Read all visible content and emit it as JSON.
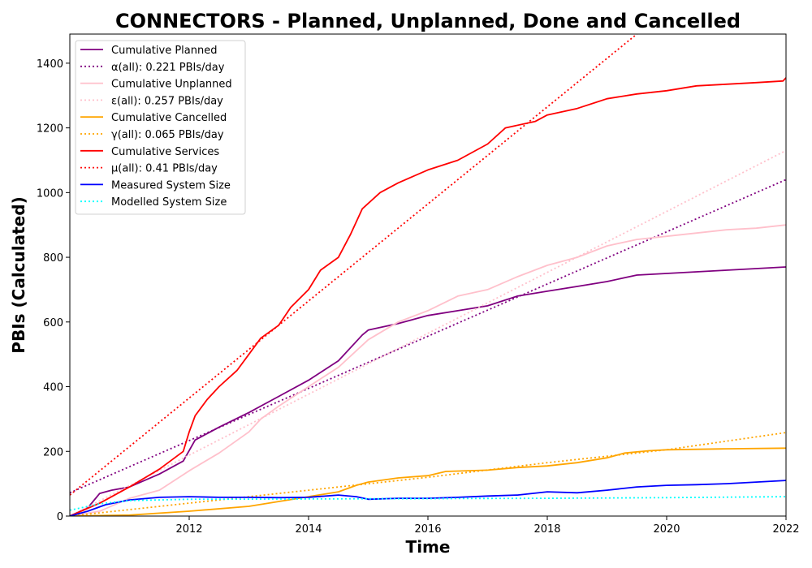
{
  "chart_data": {
    "type": "line",
    "title": "CONNECTORS - Planned, Unplanned, Done  and Cancelled",
    "xlabel": "Time",
    "ylabel": "PBIs (Calculated)",
    "xlim": [
      2010.0,
      2022.0
    ],
    "ylim": [
      0,
      1490
    ],
    "xticks": [
      2012,
      2014,
      2016,
      2018,
      2020,
      2022
    ],
    "yticks": [
      0,
      200,
      400,
      600,
      800,
      1000,
      1200,
      1400
    ],
    "grid": false,
    "legend_position": "upper-left",
    "series": [
      {
        "name": "Cumulative Planned",
        "color": "#800080",
        "style": "solid",
        "points": [
          [
            2010.0,
            0
          ],
          [
            2010.3,
            25
          ],
          [
            2010.5,
            70
          ],
          [
            2010.7,
            80
          ],
          [
            2011.0,
            90
          ],
          [
            2011.5,
            130
          ],
          [
            2011.9,
            170
          ],
          [
            2012.1,
            235
          ],
          [
            2012.5,
            275
          ],
          [
            2013.0,
            320
          ],
          [
            2013.5,
            370
          ],
          [
            2014.0,
            420
          ],
          [
            2014.5,
            480
          ],
          [
            2014.9,
            560
          ],
          [
            2015.0,
            575
          ],
          [
            2015.5,
            595
          ],
          [
            2016.0,
            620
          ],
          [
            2016.5,
            635
          ],
          [
            2017.0,
            650
          ],
          [
            2017.5,
            680
          ],
          [
            2018.0,
            695
          ],
          [
            2018.5,
            710
          ],
          [
            2019.0,
            725
          ],
          [
            2019.5,
            745
          ],
          [
            2020.0,
            750
          ],
          [
            2020.5,
            755
          ],
          [
            2021.0,
            760
          ],
          [
            2021.5,
            765
          ],
          [
            2022.0,
            770
          ]
        ]
      },
      {
        "name": "α(all): 0.221 PBIs/day",
        "color": "#800080",
        "style": "dotted",
        "points": [
          [
            2010.0,
            72
          ],
          [
            2022.0,
            1040
          ]
        ]
      },
      {
        "name": "Cumulative Unplanned",
        "color": "#ffc0cb",
        "style": "solid",
        "points": [
          [
            2010.0,
            0
          ],
          [
            2010.5,
            15
          ],
          [
            2011.0,
            55
          ],
          [
            2011.5,
            80
          ],
          [
            2012.0,
            140
          ],
          [
            2012.5,
            195
          ],
          [
            2013.0,
            260
          ],
          [
            2013.2,
            300
          ],
          [
            2013.5,
            340
          ],
          [
            2014.0,
            400
          ],
          [
            2014.5,
            460
          ],
          [
            2015.0,
            545
          ],
          [
            2015.5,
            600
          ],
          [
            2016.0,
            635
          ],
          [
            2016.5,
            680
          ],
          [
            2017.0,
            700
          ],
          [
            2017.5,
            740
          ],
          [
            2018.0,
            775
          ],
          [
            2018.5,
            800
          ],
          [
            2019.0,
            835
          ],
          [
            2019.5,
            855
          ],
          [
            2020.0,
            865
          ],
          [
            2020.5,
            875
          ],
          [
            2021.0,
            885
          ],
          [
            2021.5,
            890
          ],
          [
            2022.0,
            900
          ]
        ]
      },
      {
        "name": "ε(all): 0.257 PBIs/day",
        "color": "#ffc0cb",
        "style": "dotted",
        "points": [
          [
            2010.0,
            0
          ],
          [
            2022.0,
            1130
          ]
        ]
      },
      {
        "name": "Cumulative Cancelled",
        "color": "#ffa500",
        "style": "solid",
        "points": [
          [
            2010.0,
            0
          ],
          [
            2011.0,
            3
          ],
          [
            2012.0,
            15
          ],
          [
            2013.0,
            30
          ],
          [
            2014.0,
            60
          ],
          [
            2014.5,
            75
          ],
          [
            2014.8,
            95
          ],
          [
            2015.0,
            105
          ],
          [
            2015.5,
            118
          ],
          [
            2016.0,
            125
          ],
          [
            2016.3,
            138
          ],
          [
            2017.0,
            142
          ],
          [
            2017.5,
            150
          ],
          [
            2018.0,
            155
          ],
          [
            2018.5,
            165
          ],
          [
            2019.0,
            180
          ],
          [
            2019.3,
            195
          ],
          [
            2019.7,
            202
          ],
          [
            2020.0,
            205
          ],
          [
            2021.0,
            208
          ],
          [
            2022.0,
            210
          ]
        ]
      },
      {
        "name": "γ(all): 0.065 PBIs/day",
        "color": "#ffa500",
        "style": "dotted",
        "points": [
          [
            2010.0,
            0
          ],
          [
            2016.0,
            120
          ],
          [
            2018.0,
            165
          ],
          [
            2020.0,
            205
          ],
          [
            2022.0,
            258
          ]
        ]
      },
      {
        "name": "Cumulative Services",
        "color": "#ff0000",
        "style": "solid",
        "points": [
          [
            2010.0,
            0
          ],
          [
            2010.5,
            40
          ],
          [
            2011.0,
            90
          ],
          [
            2011.5,
            145
          ],
          [
            2011.9,
            200
          ],
          [
            2012.0,
            260
          ],
          [
            2012.1,
            310
          ],
          [
            2012.3,
            360
          ],
          [
            2012.5,
            400
          ],
          [
            2012.8,
            450
          ],
          [
            2013.0,
            500
          ],
          [
            2013.2,
            550
          ],
          [
            2013.5,
            590
          ],
          [
            2013.7,
            645
          ],
          [
            2014.0,
            700
          ],
          [
            2014.2,
            760
          ],
          [
            2014.5,
            800
          ],
          [
            2014.7,
            870
          ],
          [
            2014.9,
            950
          ],
          [
            2015.2,
            1000
          ],
          [
            2015.5,
            1030
          ],
          [
            2016.0,
            1070
          ],
          [
            2016.5,
            1100
          ],
          [
            2017.0,
            1150
          ],
          [
            2017.3,
            1200
          ],
          [
            2017.8,
            1220
          ],
          [
            2018.0,
            1240
          ],
          [
            2018.5,
            1260
          ],
          [
            2019.0,
            1290
          ],
          [
            2019.5,
            1305
          ],
          [
            2020.0,
            1315
          ],
          [
            2020.5,
            1330
          ],
          [
            2021.0,
            1335
          ],
          [
            2021.5,
            1340
          ],
          [
            2021.95,
            1345
          ],
          [
            2022.0,
            1355
          ]
        ]
      },
      {
        "name": "μ(all): 0.41 PBIs/day",
        "color": "#ff0000",
        "style": "dotted",
        "points": [
          [
            2010.0,
            65
          ],
          [
            2019.5,
            1490
          ]
        ]
      },
      {
        "name": "Measured System Size",
        "color": "#0000ff",
        "style": "solid",
        "points": [
          [
            2010.0,
            0
          ],
          [
            2010.3,
            15
          ],
          [
            2010.6,
            35
          ],
          [
            2011.0,
            50
          ],
          [
            2011.5,
            58
          ],
          [
            2012.0,
            60
          ],
          [
            2012.5,
            58
          ],
          [
            2013.0,
            58
          ],
          [
            2013.5,
            57
          ],
          [
            2014.0,
            58
          ],
          [
            2014.5,
            65
          ],
          [
            2014.8,
            60
          ],
          [
            2015.0,
            52
          ],
          [
            2015.5,
            55
          ],
          [
            2016.0,
            55
          ],
          [
            2016.5,
            58
          ],
          [
            2017.0,
            62
          ],
          [
            2017.5,
            65
          ],
          [
            2018.0,
            75
          ],
          [
            2018.5,
            72
          ],
          [
            2019.0,
            80
          ],
          [
            2019.5,
            90
          ],
          [
            2020.0,
            95
          ],
          [
            2020.5,
            97
          ],
          [
            2021.0,
            100
          ],
          [
            2021.5,
            105
          ],
          [
            2022.0,
            110
          ]
        ]
      },
      {
        "name": "Modelled System Size",
        "color": "#00ffff",
        "style": "dotted",
        "points": [
          [
            2010.0,
            18
          ],
          [
            2010.5,
            38
          ],
          [
            2011.0,
            48
          ],
          [
            2012.0,
            52
          ],
          [
            2014.0,
            53
          ],
          [
            2016.0,
            54
          ],
          [
            2018.0,
            55
          ],
          [
            2020.0,
            57
          ],
          [
            2022.0,
            60
          ]
        ]
      }
    ]
  }
}
